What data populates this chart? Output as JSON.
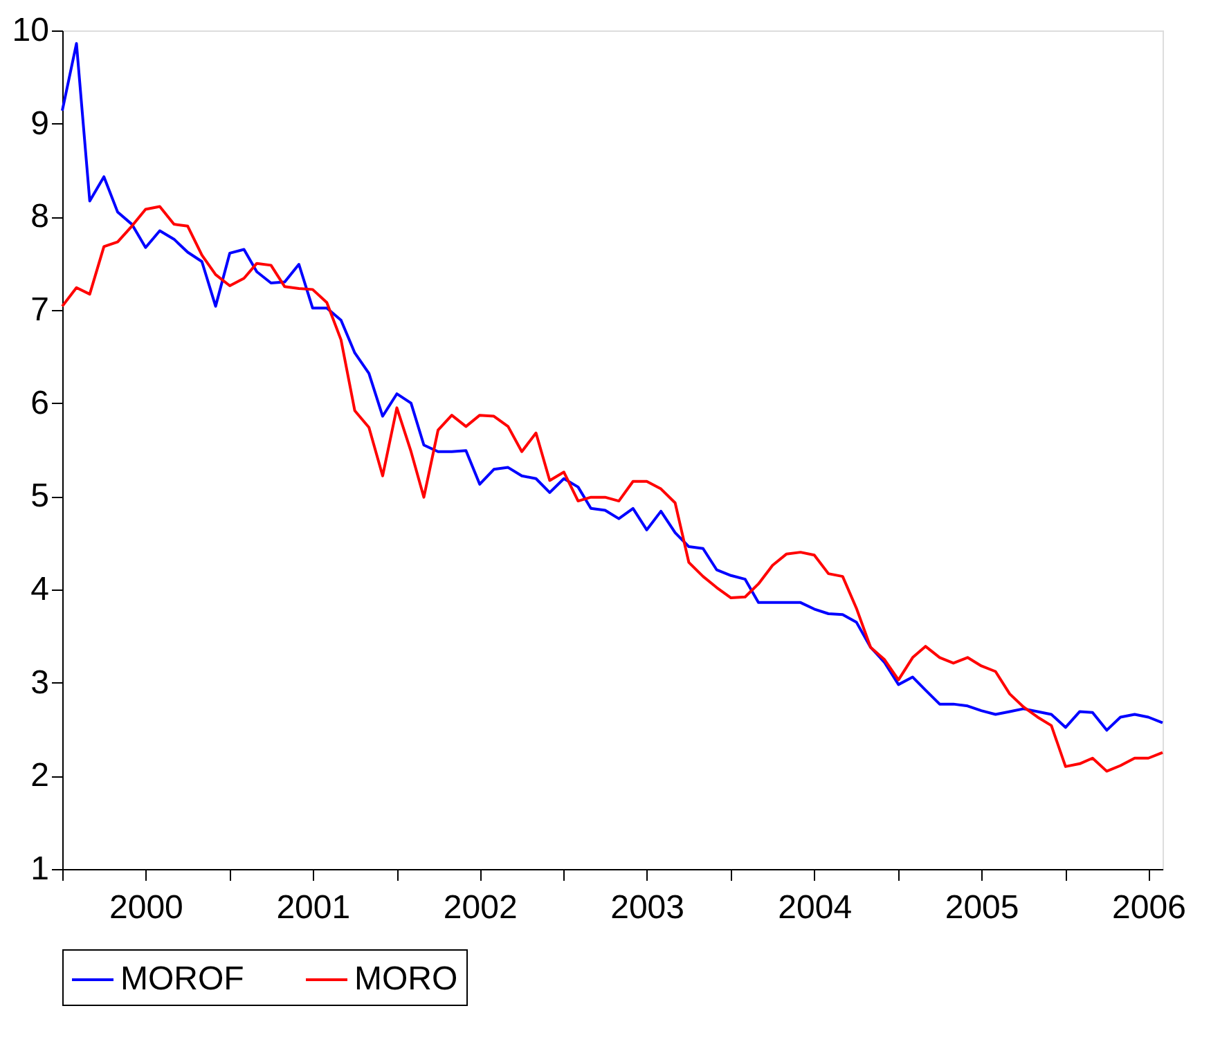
{
  "chart_data": {
    "type": "line",
    "xlim": [
      "2000-01",
      "2006-08"
    ],
    "xticks": [
      {
        "value": "2000-01",
        "label": null
      },
      {
        "value": "2000-07",
        "label": "2000"
      },
      {
        "value": "2001-01",
        "label": null
      },
      {
        "value": "2001-07",
        "label": "2001"
      },
      {
        "value": "2002-01",
        "label": null
      },
      {
        "value": "2002-07",
        "label": "2002"
      },
      {
        "value": "2003-01",
        "label": null
      },
      {
        "value": "2003-07",
        "label": "2003"
      },
      {
        "value": "2004-01",
        "label": null
      },
      {
        "value": "2004-07",
        "label": "2004"
      },
      {
        "value": "2005-01",
        "label": null
      },
      {
        "value": "2005-07",
        "label": "2005"
      },
      {
        "value": "2006-01",
        "label": null
      },
      {
        "value": "2006-07",
        "label": "2006"
      }
    ],
    "ylim": [
      1,
      10
    ],
    "yticks": [
      1,
      2,
      3,
      4,
      5,
      6,
      7,
      8,
      9,
      10
    ],
    "grid": false,
    "legend": "bottom",
    "marker": "none",
    "line_style": "solid",
    "x": [
      "2000-01",
      "2000-02",
      "2000-03",
      "2000-04",
      "2000-05",
      "2000-06",
      "2000-07",
      "2000-08",
      "2000-09",
      "2000-10",
      "2000-11",
      "2000-12",
      "2001-01",
      "2001-02",
      "2001-03",
      "2001-04",
      "2001-05",
      "2001-06",
      "2001-07",
      "2001-08",
      "2001-09",
      "2001-10",
      "2001-11",
      "2001-12",
      "2002-01",
      "2002-02",
      "2002-03",
      "2002-04",
      "2002-05",
      "2002-06",
      "2002-07",
      "2002-08",
      "2002-09",
      "2002-10",
      "2002-11",
      "2002-12",
      "2003-01",
      "2003-02",
      "2003-03",
      "2003-04",
      "2003-05",
      "2003-06",
      "2003-07",
      "2003-08",
      "2003-09",
      "2003-10",
      "2003-11",
      "2003-12",
      "2004-01",
      "2004-02",
      "2004-03",
      "2004-04",
      "2004-05",
      "2004-06",
      "2004-07",
      "2004-08",
      "2004-09",
      "2004-10",
      "2004-11",
      "2004-12",
      "2005-01",
      "2005-02",
      "2005-03",
      "2005-04",
      "2005-05",
      "2005-06",
      "2005-07",
      "2005-08",
      "2005-09",
      "2005-10",
      "2005-11",
      "2005-12",
      "2006-01",
      "2006-02",
      "2006-03",
      "2006-04",
      "2006-05",
      "2006-06",
      "2006-07",
      "2006-08"
    ],
    "series": [
      {
        "name": "MOROF",
        "color": "#0000ff",
        "values": [
          9.14,
          9.86,
          8.17,
          8.43,
          8.05,
          7.92,
          7.67,
          7.85,
          7.76,
          7.62,
          7.52,
          7.04,
          7.61,
          7.65,
          7.41,
          7.29,
          7.3,
          7.49,
          7.02,
          7.02,
          6.89,
          6.54,
          6.32,
          5.86,
          6.1,
          6.0,
          5.55,
          5.48,
          5.48,
          5.49,
          5.13,
          5.29,
          5.31,
          5.22,
          5.19,
          5.04,
          5.19,
          5.1,
          4.87,
          4.85,
          4.76,
          4.87,
          4.64,
          4.84,
          4.61,
          4.46,
          4.44,
          4.21,
          4.15,
          4.11,
          3.86,
          3.86,
          3.86,
          3.86,
          3.79,
          3.74,
          3.73,
          3.65,
          3.38,
          3.22,
          2.98,
          3.06,
          2.92,
          2.77,
          2.77,
          2.75,
          2.7,
          2.66,
          2.69,
          2.72,
          2.69,
          2.66,
          2.52,
          2.69,
          2.68,
          2.49,
          2.63,
          2.66,
          2.63,
          2.57
        ]
      },
      {
        "name": "MORO",
        "color": "#ff0000",
        "values": [
          7.04,
          7.24,
          7.17,
          7.68,
          7.73,
          7.9,
          8.08,
          8.11,
          7.92,
          7.9,
          7.59,
          7.38,
          7.26,
          7.34,
          7.5,
          7.48,
          7.25,
          7.23,
          7.22,
          7.08,
          6.68,
          5.92,
          5.74,
          5.22,
          5.95,
          5.48,
          4.99,
          5.71,
          5.87,
          5.75,
          5.87,
          5.86,
          5.75,
          5.48,
          5.68,
          5.17,
          5.26,
          4.95,
          4.99,
          4.99,
          4.95,
          5.16,
          5.16,
          5.08,
          4.93,
          4.29,
          4.14,
          4.02,
          3.91,
          3.92,
          4.06,
          4.26,
          4.38,
          4.4,
          4.37,
          4.17,
          4.14,
          3.8,
          3.38,
          3.25,
          3.03,
          3.27,
          3.39,
          3.27,
          3.21,
          3.27,
          3.18,
          3.12,
          2.88,
          2.74,
          2.63,
          2.54,
          2.1,
          2.13,
          2.19,
          2.05,
          2.11,
          2.19,
          2.19,
          2.25
        ]
      }
    ]
  }
}
